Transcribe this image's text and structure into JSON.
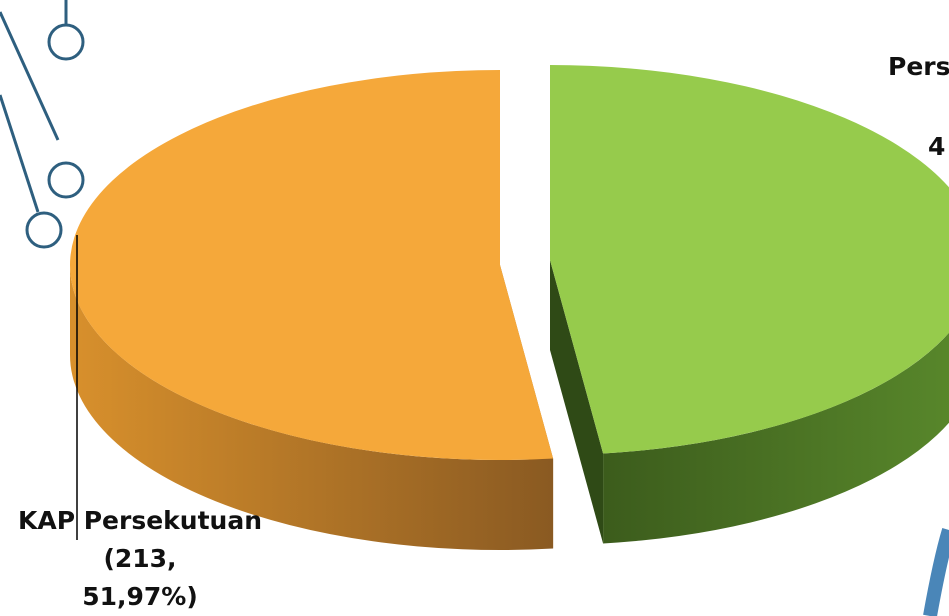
{
  "chart_data": {
    "type": "pie3d",
    "categories": [
      "KAP Persekutuan",
      "Pers"
    ],
    "values": [
      51.97,
      48.03
    ],
    "value_labels": [
      [
        "(213,",
        "51,97%)"
      ],
      [
        "4"
      ]
    ],
    "colors": [
      "#f5a83a",
      "#96cb4c"
    ]
  }
}
